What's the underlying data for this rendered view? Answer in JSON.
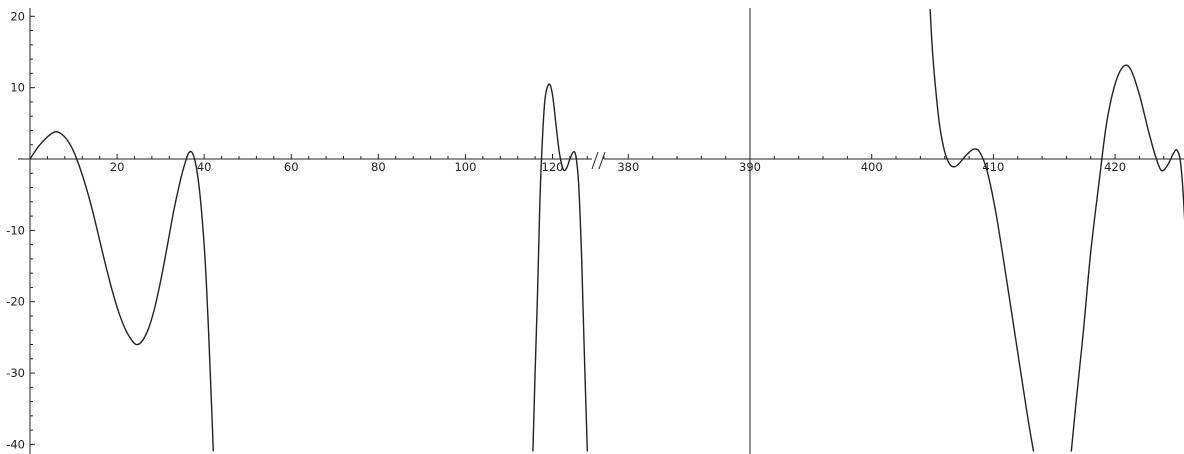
{
  "chart_data": {
    "type": "line",
    "title": "",
    "xlabel": "",
    "ylabel": "",
    "ylim": [
      -41,
      21
    ],
    "grid": false,
    "legend": "none",
    "broken_x_axis": true,
    "x_segments": [
      {
        "xlim": [
          0,
          128.4
        ],
        "ticks": [
          20,
          40,
          60,
          80,
          100,
          120
        ]
      },
      {
        "xlim": [
          377.7,
          425.3
        ],
        "ticks": [
          380,
          390,
          400,
          410,
          420
        ]
      }
    ],
    "y_ticks": [
      20,
      10,
      -10,
      -20,
      -30,
      -40
    ],
    "y_tick_labels": [
      "20",
      "10",
      "-10",
      "-20",
      "-30",
      "-40"
    ],
    "x_tick_labels": [
      "20",
      "40",
      "60",
      "80",
      "100",
      "120",
      "380",
      "390",
      "400",
      "410",
      "420"
    ],
    "extra_vertical_line_x": 390,
    "series": [
      {
        "segment": 0,
        "points": [
          [
            0,
            0
          ],
          [
            2,
            1.8
          ],
          [
            4,
            3.1
          ],
          [
            5.7,
            3.8
          ],
          [
            7,
            3.6
          ],
          [
            8.5,
            2.7
          ],
          [
            10,
            1.1
          ],
          [
            11.5,
            -1.3
          ],
          [
            13,
            -4.2
          ],
          [
            14.5,
            -7.6
          ],
          [
            16,
            -11.4
          ],
          [
            17.5,
            -15.2
          ],
          [
            19,
            -18.7
          ],
          [
            20.5,
            -21.7
          ],
          [
            22,
            -24
          ],
          [
            23.5,
            -25.5
          ],
          [
            24.4,
            -26
          ],
          [
            25.5,
            -25.7
          ],
          [
            27,
            -24.1
          ],
          [
            28.5,
            -21.2
          ],
          [
            30,
            -17.1
          ],
          [
            31.5,
            -12.3
          ],
          [
            33,
            -7.3
          ],
          [
            34.5,
            -3.1
          ],
          [
            35.5,
            -0.8
          ],
          [
            36.5,
            0.9
          ],
          [
            37.4,
            0.7
          ],
          [
            38.3,
            -1.5
          ],
          [
            39.2,
            -6
          ],
          [
            40.2,
            -14
          ],
          [
            41,
            -24
          ],
          [
            41.6,
            -33
          ],
          [
            42.1,
            -41
          ]
        ]
      },
      {
        "segment": 0,
        "points": [
          [
            115.5,
            -41
          ],
          [
            116,
            -30
          ],
          [
            116.6,
            -18
          ],
          [
            117.1,
            -6
          ],
          [
            117.7,
            3
          ],
          [
            118.3,
            8.5
          ],
          [
            119.2,
            10.5
          ],
          [
            120,
            9
          ],
          [
            120.8,
            4.8
          ],
          [
            121.6,
            0.8
          ],
          [
            122.5,
            -1.5
          ],
          [
            123.3,
            -1.2
          ],
          [
            124,
            0
          ],
          [
            124.8,
            1
          ],
          [
            125.4,
            0.3
          ],
          [
            126,
            -3.5
          ],
          [
            126.7,
            -14
          ],
          [
            127.3,
            -27
          ],
          [
            128,
            -41
          ]
        ]
      },
      {
        "segment": 1,
        "points": [
          [
            404.8,
            21
          ],
          [
            405,
            15
          ],
          [
            405.3,
            9
          ],
          [
            405.6,
            4.5
          ],
          [
            406,
            1
          ],
          [
            406.4,
            -0.7
          ],
          [
            406.8,
            -1.1
          ],
          [
            407.2,
            -0.6
          ],
          [
            407.8,
            0.6
          ],
          [
            408.4,
            1.4
          ],
          [
            408.9,
            0.9
          ],
          [
            409.5,
            -1.8
          ],
          [
            410.2,
            -7.5
          ],
          [
            411,
            -16
          ],
          [
            411.9,
            -26
          ],
          [
            412.8,
            -36
          ],
          [
            413.3,
            -41
          ]
        ]
      },
      {
        "segment": 1,
        "points": [
          [
            416.4,
            -41
          ],
          [
            416.8,
            -34
          ],
          [
            417.4,
            -24
          ],
          [
            418,
            -13
          ],
          [
            418.7,
            -3
          ],
          [
            419.3,
            5
          ],
          [
            420,
            10.5
          ],
          [
            420.7,
            13
          ],
          [
            421.3,
            12.5
          ],
          [
            422,
            9
          ],
          [
            422.7,
            4.2
          ],
          [
            423.3,
            0.5
          ],
          [
            423.8,
            -1.6
          ],
          [
            424.3,
            -0.9
          ],
          [
            424.8,
            0.8
          ],
          [
            425.1,
            1.2
          ],
          [
            425.4,
            -0.8
          ],
          [
            425.7,
            -8
          ],
          [
            426,
            -20
          ],
          [
            426.3,
            -32
          ],
          [
            426.5,
            -41
          ]
        ]
      }
    ]
  }
}
